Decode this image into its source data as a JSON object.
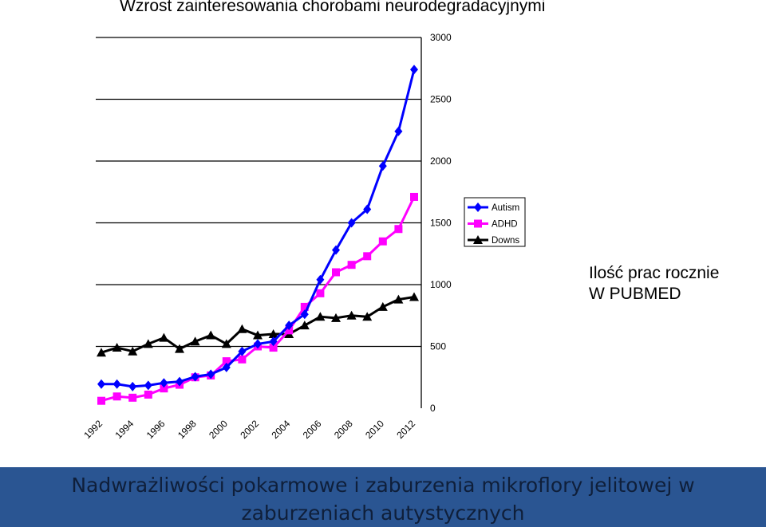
{
  "slide": {
    "title": "Wzrost zainteresowania chorobami neurodegradacyjnymi",
    "note_line1": "Ilość prac rocznie",
    "note_line2": "W PUBMED",
    "footer_line1": "Nadwrażliwości pokarmowe i zaburzenia mikroflory jelitowej w",
    "footer_line2": "zaburzeniach autystycznych"
  },
  "colors": {
    "footer_background": "#2a5592",
    "autism": "#0000ff",
    "adhd": "#ff00ff",
    "downs": "#000000"
  },
  "chart_data": {
    "type": "line",
    "x": [
      1992,
      1993,
      1994,
      1995,
      1996,
      1997,
      1998,
      1999,
      2000,
      2001,
      2002,
      2003,
      2004,
      2005,
      2006,
      2007,
      2008,
      2009,
      2010,
      2011,
      2012
    ],
    "x_tick_labels": [
      "1992",
      "1994",
      "1996",
      "1998",
      "2000",
      "2002",
      "2004",
      "2006",
      "2008",
      "2010",
      "2012"
    ],
    "y_tick_labels": [
      "0",
      "500",
      "1000",
      "1500",
      "2000",
      "2500",
      "3000"
    ],
    "ylim": [
      0,
      3000
    ],
    "grid": "horizontal",
    "y_axis_side": "right",
    "legend_position": "right",
    "series": [
      {
        "name": "Autism",
        "marker": "diamond",
        "color": "#0000ff",
        "values": [
          195,
          195,
          175,
          185,
          205,
          215,
          255,
          275,
          330,
          460,
          520,
          540,
          670,
          760,
          1040,
          1280,
          1500,
          1610,
          1960,
          2240,
          2740
        ]
      },
      {
        "name": "ADHD",
        "marker": "square",
        "color": "#ff00ff",
        "values": [
          60,
          95,
          85,
          110,
          160,
          190,
          250,
          265,
          380,
          395,
          500,
          490,
          630,
          820,
          930,
          1100,
          1160,
          1230,
          1350,
          1450,
          1710
        ]
      },
      {
        "name": "Downs",
        "marker": "triangle",
        "color": "#000000",
        "values": [
          450,
          490,
          460,
          520,
          570,
          480,
          540,
          590,
          520,
          640,
          590,
          600,
          600,
          670,
          740,
          730,
          750,
          740,
          820,
          880,
          900
        ]
      }
    ]
  }
}
